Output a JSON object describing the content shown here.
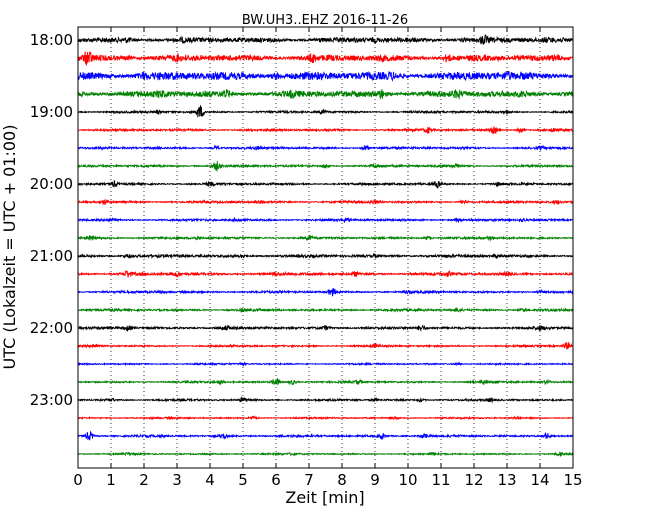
{
  "chart_data": {
    "type": "line",
    "title": "BW.UH3..EHZ 2016-11-26",
    "xlabel": "Zeit  [min]",
    "ylabel": "UTC (Lokalzeit = UTC + 01:00)",
    "xlim": [
      0,
      15
    ],
    "x_ticks": [
      "0",
      "1",
      "2",
      "3",
      "4",
      "5",
      "6",
      "7",
      "8",
      "9",
      "10",
      "11",
      "12",
      "13",
      "14",
      "15"
    ],
    "y_tick_labels": [
      "18:00",
      "19:00",
      "20:00",
      "21:00",
      "22:00",
      "23:00"
    ],
    "row_interval_minutes": 15,
    "start_time": "18:00",
    "grid": "vertical dotted at each minute",
    "colors_cycle": [
      "#000000",
      "#ff0000",
      "#0000ff",
      "#008000"
    ],
    "rows": [
      {
        "start": "18:00",
        "color": "#000000",
        "base_amp": 0.16,
        "events": [
          [
            1.5,
            0.12
          ],
          [
            3.2,
            0.1
          ],
          [
            7.3,
            0.1
          ],
          [
            9,
            0.08
          ],
          [
            11.7,
            0.12
          ],
          [
            12.3,
            0.3
          ],
          [
            14.2,
            0.08
          ]
        ]
      },
      {
        "start": "18:15",
        "color": "#ff0000",
        "base_amp": 0.2,
        "events": [
          [
            0.3,
            0.5
          ],
          [
            1.5,
            0.12
          ],
          [
            3,
            0.1
          ],
          [
            7.1,
            0.25
          ],
          [
            9.2,
            0.1
          ],
          [
            11.2,
            0.25
          ],
          [
            14.5,
            0.15
          ]
        ]
      },
      {
        "start": "18:30",
        "color": "#0000ff",
        "base_amp": 0.26,
        "events": [
          [
            2,
            0.15
          ],
          [
            6,
            0.2
          ],
          [
            9.5,
            0.15
          ],
          [
            13,
            0.15
          ]
        ]
      },
      {
        "start": "18:45",
        "color": "#008000",
        "base_amp": 0.2,
        "events": [
          [
            2.5,
            0.15
          ],
          [
            4.5,
            0.2
          ],
          [
            6.5,
            0.15
          ],
          [
            9.2,
            0.3
          ],
          [
            11.5,
            0.2
          ],
          [
            13.5,
            0.15
          ]
        ]
      },
      {
        "start": "19:00",
        "color": "#000000",
        "base_amp": 0.07,
        "events": [
          [
            3.7,
            0.5
          ],
          [
            2.4,
            0.12
          ],
          [
            7.4,
            0.15
          ],
          [
            13,
            0.12
          ]
        ]
      },
      {
        "start": "19:15",
        "color": "#ff0000",
        "base_amp": 0.07,
        "events": [
          [
            10.6,
            0.2
          ],
          [
            12.6,
            0.25
          ],
          [
            13.4,
            0.18
          ],
          [
            14.4,
            0.12
          ]
        ]
      },
      {
        "start": "19:30",
        "color": "#0000ff",
        "base_amp": 0.07,
        "events": [
          [
            4.2,
            0.15
          ],
          [
            5.5,
            0.1
          ],
          [
            8.7,
            0.22
          ],
          [
            14,
            0.1
          ]
        ]
      },
      {
        "start": "19:45",
        "color": "#008000",
        "base_amp": 0.07,
        "events": [
          [
            4.2,
            0.35
          ],
          [
            7.5,
            0.15
          ],
          [
            9,
            0.12
          ],
          [
            11.5,
            0.15
          ]
        ]
      },
      {
        "start": "20:00",
        "color": "#000000",
        "base_amp": 0.07,
        "events": [
          [
            1.1,
            0.2
          ],
          [
            4,
            0.15
          ],
          [
            10.9,
            0.25
          ],
          [
            12.7,
            0.12
          ]
        ]
      },
      {
        "start": "20:15",
        "color": "#ff0000",
        "base_amp": 0.07,
        "events": [
          [
            0.8,
            0.18
          ],
          [
            5.5,
            0.12
          ],
          [
            9,
            0.12
          ],
          [
            11.7,
            0.18
          ],
          [
            14.5,
            0.1
          ]
        ]
      },
      {
        "start": "20:30",
        "color": "#0000ff",
        "base_amp": 0.07,
        "events": [
          [
            1,
            0.12
          ],
          [
            4.8,
            0.12
          ],
          [
            8.1,
            0.15
          ],
          [
            11.5,
            0.12
          ],
          [
            13.5,
            0.1
          ]
        ]
      },
      {
        "start": "20:45",
        "color": "#008000",
        "base_amp": 0.07,
        "events": [
          [
            0.4,
            0.18
          ],
          [
            3.6,
            0.1
          ],
          [
            7,
            0.12
          ],
          [
            10.6,
            0.15
          ],
          [
            12.5,
            0.12
          ]
        ]
      },
      {
        "start": "21:00",
        "color": "#000000",
        "base_amp": 0.09,
        "events": [
          [
            1.5,
            0.12
          ],
          [
            5,
            0.1
          ],
          [
            9,
            0.1
          ],
          [
            12.7,
            0.1
          ]
        ]
      },
      {
        "start": "21:15",
        "color": "#ff0000",
        "base_amp": 0.09,
        "events": [
          [
            1.5,
            0.25
          ],
          [
            3,
            0.2
          ],
          [
            6,
            0.12
          ],
          [
            8.4,
            0.15
          ],
          [
            11.2,
            0.15
          ],
          [
            13,
            0.12
          ]
        ]
      },
      {
        "start": "21:30",
        "color": "#0000ff",
        "base_amp": 0.07,
        "events": [
          [
            7.7,
            0.3
          ],
          [
            2.5,
            0.1
          ],
          [
            10,
            0.1
          ],
          [
            14,
            0.1
          ]
        ]
      },
      {
        "start": "21:45",
        "color": "#008000",
        "base_amp": 0.07,
        "events": [
          [
            5,
            0.1
          ],
          [
            11.5,
            0.15
          ],
          [
            13.5,
            0.12
          ]
        ]
      },
      {
        "start": "22:00",
        "color": "#000000",
        "base_amp": 0.08,
        "events": [
          [
            1.5,
            0.18
          ],
          [
            4.5,
            0.15
          ],
          [
            7.5,
            0.15
          ],
          [
            10.4,
            0.2
          ],
          [
            14,
            0.15
          ]
        ]
      },
      {
        "start": "22:15",
        "color": "#ff0000",
        "base_amp": 0.06,
        "events": [
          [
            0.5,
            0.15
          ],
          [
            9,
            0.1
          ],
          [
            14.8,
            0.3
          ]
        ]
      },
      {
        "start": "22:30",
        "color": "#0000ff",
        "base_amp": 0.05,
        "events": [
          [
            5,
            0.1
          ],
          [
            11.5,
            0.1
          ]
        ]
      },
      {
        "start": "22:45",
        "color": "#008000",
        "base_amp": 0.06,
        "events": [
          [
            4.3,
            0.15
          ],
          [
            6,
            0.3
          ],
          [
            6.5,
            0.2
          ],
          [
            8.5,
            0.15
          ],
          [
            12.3,
            0.15
          ],
          [
            14.2,
            0.1
          ]
        ]
      },
      {
        "start": "23:00",
        "color": "#000000",
        "base_amp": 0.06,
        "events": [
          [
            1,
            0.12
          ],
          [
            5,
            0.2
          ],
          [
            9,
            0.1
          ],
          [
            10.4,
            0.12
          ],
          [
            12.5,
            0.12
          ]
        ]
      },
      {
        "start": "23:15",
        "color": "#ff0000",
        "base_amp": 0.05,
        "events": [
          [
            5.3,
            0.15
          ],
          [
            9.6,
            0.1
          ],
          [
            13.3,
            0.1
          ]
        ]
      },
      {
        "start": "23:30",
        "color": "#0000ff",
        "base_amp": 0.07,
        "events": [
          [
            0.35,
            0.35
          ],
          [
            4.4,
            0.2
          ],
          [
            9.2,
            0.25
          ],
          [
            10.5,
            0.15
          ],
          [
            14.2,
            0.25
          ]
        ]
      },
      {
        "start": "23:45",
        "color": "#008000",
        "base_amp": 0.05,
        "events": [
          [
            1.5,
            0.08
          ],
          [
            6.5,
            0.08
          ],
          [
            10.8,
            0.08
          ],
          [
            14.6,
            0.1
          ]
        ]
      }
    ]
  }
}
